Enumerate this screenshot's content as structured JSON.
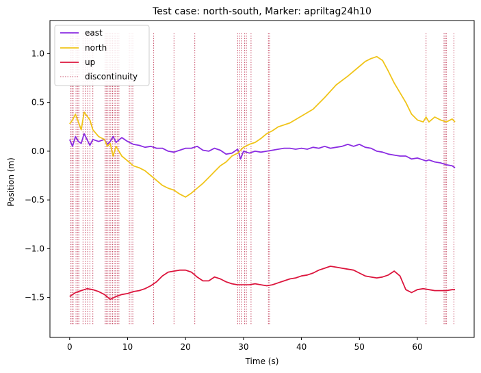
{
  "chart_data": {
    "type": "line",
    "title": "Test case: north-south, Marker: apriltag24h10",
    "xlabel": "Time (s)",
    "ylabel": "Position (m)",
    "xlim": [
      -3.4,
      69.8
    ],
    "ylim": [
      -1.91,
      1.34
    ],
    "xticks": [
      0,
      10,
      20,
      30,
      40,
      50,
      60
    ],
    "xtick_labels": [
      "0",
      "10",
      "20",
      "30",
      "40",
      "50",
      "60"
    ],
    "yticks": [
      -1.5,
      -1.0,
      -0.5,
      0.0,
      0.5,
      1.0
    ],
    "ytick_labels": [
      "−1.5",
      "−1.0",
      "−0.5",
      "0.0",
      "0.5",
      "1.0"
    ],
    "grid": false,
    "legend_position": "upper-left",
    "series": [
      {
        "name": "east",
        "color": "#8a2be2",
        "x": [
          0,
          0.5,
          1,
          1.5,
          2,
          2.5,
          3,
          3.5,
          4,
          5,
          6,
          6.5,
          7,
          7.5,
          8,
          9,
          10,
          11,
          12,
          13,
          14,
          15,
          16,
          17,
          18,
          19,
          20,
          21,
          22,
          23,
          24,
          25,
          26,
          27,
          28,
          29,
          29.5,
          30,
          31,
          32,
          33,
          34,
          35,
          36,
          37,
          38,
          39,
          40,
          41,
          42,
          43,
          44,
          45,
          46,
          47,
          48,
          49,
          50,
          51,
          52,
          53,
          54,
          55,
          56,
          57,
          58,
          59,
          60,
          61,
          61.5,
          62,
          63,
          64,
          65,
          66,
          66.5
        ],
        "y": [
          0.12,
          0.05,
          0.15,
          0.1,
          0.08,
          0.18,
          0.12,
          0.06,
          0.12,
          0.1,
          0.12,
          0.07,
          0.1,
          0.15,
          0.09,
          0.14,
          0.1,
          0.07,
          0.06,
          0.04,
          0.05,
          0.03,
          0.03,
          0.0,
          -0.01,
          0.01,
          0.03,
          0.03,
          0.05,
          0.01,
          0.0,
          0.03,
          0.01,
          -0.03,
          -0.02,
          0.02,
          -0.08,
          0.0,
          -0.02,
          0.0,
          -0.01,
          0.0,
          0.01,
          0.02,
          0.03,
          0.03,
          0.02,
          0.03,
          0.02,
          0.04,
          0.03,
          0.05,
          0.03,
          0.04,
          0.05,
          0.07,
          0.05,
          0.07,
          0.04,
          0.03,
          0.0,
          -0.01,
          -0.03,
          -0.04,
          -0.05,
          -0.05,
          -0.08,
          -0.07,
          -0.09,
          -0.1,
          -0.09,
          -0.11,
          -0.12,
          -0.14,
          -0.15,
          -0.17
        ]
      },
      {
        "name": "north",
        "color": "#f0c419",
        "x": [
          0,
          0.5,
          1,
          1.5,
          2,
          2.5,
          3,
          3.5,
          4,
          5,
          6,
          6.5,
          7,
          7.5,
          8,
          9,
          10,
          11,
          12,
          13,
          14,
          15,
          16,
          17,
          18,
          19,
          20,
          21,
          22,
          23,
          24,
          25,
          26,
          27,
          28,
          29,
          30,
          31,
          32,
          33,
          34,
          35,
          36,
          38,
          40,
          42,
          44,
          46,
          48,
          50,
          51,
          52,
          53,
          54,
          55,
          56,
          57,
          58,
          59,
          60,
          61,
          61.5,
          62,
          63,
          64,
          65,
          66,
          66.5
        ],
        "y": [
          0.28,
          0.32,
          0.38,
          0.3,
          0.22,
          0.4,
          0.36,
          0.32,
          0.22,
          0.15,
          0.12,
          0.05,
          0.08,
          -0.05,
          0.05,
          -0.05,
          -0.1,
          -0.15,
          -0.17,
          -0.2,
          -0.25,
          -0.3,
          -0.35,
          -0.38,
          -0.4,
          -0.44,
          -0.47,
          -0.43,
          -0.38,
          -0.33,
          -0.27,
          -0.21,
          -0.15,
          -0.11,
          -0.05,
          -0.02,
          0.04,
          0.07,
          0.09,
          0.13,
          0.18,
          0.21,
          0.25,
          0.29,
          0.36,
          0.43,
          0.55,
          0.68,
          0.77,
          0.87,
          0.92,
          0.95,
          0.97,
          0.93,
          0.82,
          0.7,
          0.6,
          0.5,
          0.38,
          0.32,
          0.3,
          0.35,
          0.3,
          0.35,
          0.32,
          0.3,
          0.33,
          0.3
        ]
      },
      {
        "name": "up",
        "color": "#dc143c",
        "x": [
          0,
          1,
          2,
          3,
          4,
          5,
          6,
          7,
          8,
          9,
          10,
          11,
          12,
          13,
          14,
          15,
          16,
          17,
          18,
          19,
          20,
          21,
          22,
          23,
          24,
          25,
          26,
          27,
          28,
          29,
          30,
          31,
          32,
          33,
          34,
          35,
          36,
          37,
          38,
          39,
          40,
          41,
          42,
          43,
          44,
          45,
          46,
          47,
          48,
          49,
          50,
          51,
          52,
          53,
          54,
          55,
          56,
          57,
          58,
          59,
          60,
          61,
          62,
          63,
          64,
          65,
          66,
          66.5
        ],
        "y": [
          -1.49,
          -1.45,
          -1.43,
          -1.41,
          -1.42,
          -1.44,
          -1.47,
          -1.52,
          -1.49,
          -1.47,
          -1.46,
          -1.44,
          -1.43,
          -1.41,
          -1.38,
          -1.34,
          -1.28,
          -1.24,
          -1.23,
          -1.22,
          -1.22,
          -1.24,
          -1.29,
          -1.33,
          -1.33,
          -1.29,
          -1.31,
          -1.34,
          -1.36,
          -1.37,
          -1.37,
          -1.37,
          -1.36,
          -1.37,
          -1.38,
          -1.37,
          -1.35,
          -1.33,
          -1.31,
          -1.3,
          -1.28,
          -1.27,
          -1.25,
          -1.22,
          -1.2,
          -1.18,
          -1.19,
          -1.2,
          -1.21,
          -1.22,
          -1.25,
          -1.28,
          -1.29,
          -1.3,
          -1.29,
          -1.27,
          -1.23,
          -1.28,
          -1.42,
          -1.45,
          -1.42,
          -1.41,
          -1.42,
          -1.43,
          -1.43,
          -1.43,
          -1.42,
          -1.42
        ]
      }
    ],
    "discontinuity": {
      "name": "discontinuity",
      "color": "#c8506a",
      "y_range": [
        -1.78,
        1.21
      ],
      "x": [
        0.2,
        0.4,
        0.6,
        1.1,
        1.4,
        1.6,
        2.3,
        2.7,
        3.1,
        3.5,
        4.0,
        6.1,
        6.3,
        6.6,
        6.9,
        7.1,
        7.4,
        7.7,
        7.9,
        8.2,
        8.5,
        10.3,
        10.6,
        10.9,
        14.5,
        18.0,
        21.6,
        29.0,
        29.3,
        29.6,
        30.2,
        30.5,
        31.3,
        34.3,
        34.5,
        61.5,
        64.6,
        64.8,
        65.0,
        66.3
      ]
    }
  }
}
